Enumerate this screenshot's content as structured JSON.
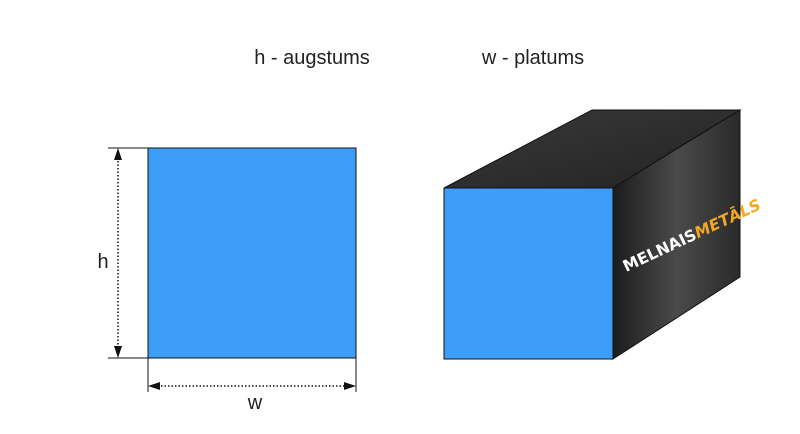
{
  "header": {
    "height_label": "h - augstums",
    "width_label": "w - platums"
  },
  "diagram": {
    "height_symbol": "h",
    "width_symbol": "w"
  },
  "logo": {
    "word1": "MELNAIS",
    "word2": "METĀLS"
  }
}
